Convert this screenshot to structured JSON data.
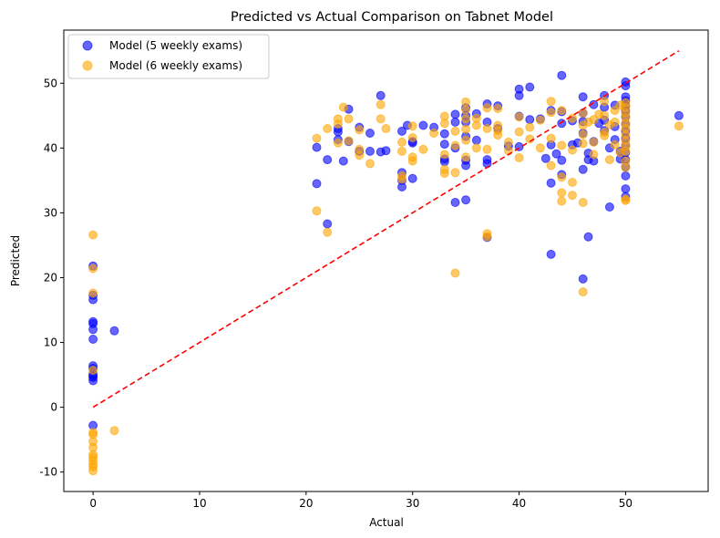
{
  "chart_data": {
    "type": "scatter",
    "title": "Predicted vs Actual Comparison on Tabnet Model",
    "xlabel": "Actual",
    "ylabel": "Predicted",
    "xlim": [
      -2.75,
      57.75
    ],
    "ylim": [
      -13.0,
      58.2
    ],
    "xticks": [
      0,
      10,
      20,
      30,
      40,
      50
    ],
    "yticks": [
      -10,
      0,
      10,
      20,
      30,
      40,
      50
    ],
    "grid": false,
    "legend_position": "top-left",
    "reference_line": {
      "x": [
        0,
        55
      ],
      "y": [
        0,
        55
      ],
      "style": "dashed",
      "color": "#ff0000"
    },
    "series": [
      {
        "name": "Model (5 weekly exams)",
        "color": "#0000ff",
        "points": [
          [
            0,
            21.8
          ],
          [
            0,
            17.3
          ],
          [
            0,
            16.6
          ],
          [
            0,
            13.2
          ],
          [
            0,
            12.9
          ],
          [
            0,
            12.0
          ],
          [
            0,
            10.5
          ],
          [
            0,
            6.4
          ],
          [
            0,
            6.0
          ],
          [
            0,
            5.1
          ],
          [
            0,
            4.8
          ],
          [
            0,
            4.6
          ],
          [
            0,
            4.1
          ],
          [
            0,
            -2.8
          ],
          [
            2,
            11.8
          ],
          [
            21,
            40.1
          ],
          [
            21,
            34.5
          ],
          [
            22,
            38.2
          ],
          [
            22,
            28.3
          ],
          [
            23,
            42.5
          ],
          [
            23,
            43.0
          ],
          [
            23,
            41.3
          ],
          [
            23.5,
            38.0
          ],
          [
            24,
            46.0
          ],
          [
            24,
            41.0
          ],
          [
            25,
            43.2
          ],
          [
            25,
            39.5
          ],
          [
            26,
            42.3
          ],
          [
            26,
            39.5
          ],
          [
            27,
            48.1
          ],
          [
            27,
            39.4
          ],
          [
            27.5,
            39.6
          ],
          [
            29,
            42.6
          ],
          [
            29,
            36.2
          ],
          [
            29,
            35.0
          ],
          [
            29,
            34.0
          ],
          [
            29.5,
            43.5
          ],
          [
            30,
            41.0
          ],
          [
            30,
            40.8
          ],
          [
            30,
            35.3
          ],
          [
            31,
            43.5
          ],
          [
            32,
            43.2
          ],
          [
            33,
            42.2
          ],
          [
            33,
            40.6
          ],
          [
            33,
            38.3
          ],
          [
            33,
            37.9
          ],
          [
            34,
            45.2
          ],
          [
            34,
            44.0
          ],
          [
            34,
            40.0
          ],
          [
            34,
            31.6
          ],
          [
            35,
            46.2
          ],
          [
            35,
            45.0
          ],
          [
            35,
            44.0
          ],
          [
            35,
            41.8
          ],
          [
            35,
            38.1
          ],
          [
            35,
            37.3
          ],
          [
            35,
            32.0
          ],
          [
            36,
            45.3
          ],
          [
            36,
            41.2
          ],
          [
            37,
            46.8
          ],
          [
            37,
            44.0
          ],
          [
            37,
            38.2
          ],
          [
            37,
            37.6
          ],
          [
            37,
            26.2
          ],
          [
            38,
            46.5
          ],
          [
            38,
            43.0
          ],
          [
            39,
            40.3
          ],
          [
            40,
            49.1
          ],
          [
            40,
            48.1
          ],
          [
            40,
            44.9
          ],
          [
            40,
            40.2
          ],
          [
            41,
            49.4
          ],
          [
            41,
            44.4
          ],
          [
            42,
            44.5
          ],
          [
            42.5,
            38.4
          ],
          [
            43,
            45.8
          ],
          [
            43,
            40.5
          ],
          [
            43,
            34.6
          ],
          [
            43,
            23.6
          ],
          [
            43.5,
            39.1
          ],
          [
            44,
            51.2
          ],
          [
            44,
            45.6
          ],
          [
            44,
            43.8
          ],
          [
            44,
            38.1
          ],
          [
            44,
            35.9
          ],
          [
            45,
            44.2
          ],
          [
            45,
            40.5
          ],
          [
            45.5,
            40.8
          ],
          [
            46,
            47.9
          ],
          [
            46,
            45.4
          ],
          [
            46,
            44.1
          ],
          [
            46,
            42.3
          ],
          [
            46,
            36.7
          ],
          [
            46,
            19.8
          ],
          [
            46.5,
            39.2
          ],
          [
            46.5,
            38.2
          ],
          [
            46.5,
            26.3
          ],
          [
            47,
            46.7
          ],
          [
            47,
            41.0
          ],
          [
            47,
            38.0
          ],
          [
            47.5,
            43.8
          ],
          [
            48,
            48.1
          ],
          [
            48,
            46.3
          ],
          [
            48,
            44.3
          ],
          [
            48,
            42.7
          ],
          [
            48.5,
            40.0
          ],
          [
            48.5,
            30.9
          ],
          [
            49,
            46.6
          ],
          [
            49,
            43.3
          ],
          [
            49,
            41.3
          ],
          [
            49.5,
            39.5
          ],
          [
            49.5,
            38.3
          ],
          [
            50,
            50.2
          ],
          [
            50,
            49.6
          ],
          [
            50,
            47.9
          ],
          [
            50,
            47.3
          ],
          [
            50,
            46.5
          ],
          [
            50,
            45.7
          ],
          [
            50,
            44.8
          ],
          [
            50,
            43.7
          ],
          [
            50,
            42.6
          ],
          [
            50,
            41.5
          ],
          [
            50,
            40.4
          ],
          [
            50,
            39.3
          ],
          [
            50,
            38.2
          ],
          [
            50,
            37.1
          ],
          [
            50,
            35.7
          ],
          [
            50,
            33.7
          ],
          [
            50,
            32.5
          ],
          [
            55,
            45.0
          ]
        ]
      },
      {
        "name": "Model (6 weekly exams)",
        "color": "#ffa500",
        "points": [
          [
            0,
            26.6
          ],
          [
            0,
            21.4
          ],
          [
            0,
            17.6
          ],
          [
            0,
            5.7
          ],
          [
            0,
            -3.9
          ],
          [
            0,
            -4.2
          ],
          [
            0,
            -5.3
          ],
          [
            0,
            -6.2
          ],
          [
            0,
            -7.3
          ],
          [
            0,
            -7.7
          ],
          [
            0,
            -8.2
          ],
          [
            0,
            -8.8
          ],
          [
            0,
            -9.2
          ],
          [
            0,
            -9.8
          ],
          [
            2,
            -3.6
          ],
          [
            21,
            41.5
          ],
          [
            21,
            30.3
          ],
          [
            22,
            43.0
          ],
          [
            22,
            27.0
          ],
          [
            23,
            44.5
          ],
          [
            23,
            43.7
          ],
          [
            23,
            40.8
          ],
          [
            23.5,
            46.3
          ],
          [
            24,
            44.5
          ],
          [
            24,
            41.1
          ],
          [
            25,
            42.8
          ],
          [
            25,
            39.8
          ],
          [
            25,
            38.9
          ],
          [
            26,
            37.6
          ],
          [
            27,
            46.7
          ],
          [
            27,
            44.5
          ],
          [
            27.5,
            43.0
          ],
          [
            29,
            40.9
          ],
          [
            29,
            39.5
          ],
          [
            29,
            35.7
          ],
          [
            29,
            35.2
          ],
          [
            30,
            43.4
          ],
          [
            30,
            41.6
          ],
          [
            30,
            38.6
          ],
          [
            30,
            38.0
          ],
          [
            31,
            39.8
          ],
          [
            32,
            42.3
          ],
          [
            33,
            44.9
          ],
          [
            33,
            43.8
          ],
          [
            33,
            39.0
          ],
          [
            33,
            36.7
          ],
          [
            33,
            36.1
          ],
          [
            34,
            42.6
          ],
          [
            34,
            40.4
          ],
          [
            34,
            36.2
          ],
          [
            34,
            20.7
          ],
          [
            35,
            47.1
          ],
          [
            35,
            45.9
          ],
          [
            35,
            44.5
          ],
          [
            35,
            42.9
          ],
          [
            35,
            41.2
          ],
          [
            35,
            38.6
          ],
          [
            36,
            44.6
          ],
          [
            36,
            43.5
          ],
          [
            36,
            40.0
          ],
          [
            37,
            46.2
          ],
          [
            37,
            43.0
          ],
          [
            37,
            39.8
          ],
          [
            37,
            26.8
          ],
          [
            37,
            26.3
          ],
          [
            38,
            46.1
          ],
          [
            38,
            43.5
          ],
          [
            38,
            42.7
          ],
          [
            38,
            42.0
          ],
          [
            39,
            39.6
          ],
          [
            39,
            40.9
          ],
          [
            40,
            44.8
          ],
          [
            40,
            42.5
          ],
          [
            40,
            38.5
          ],
          [
            41,
            43.2
          ],
          [
            41,
            41.4
          ],
          [
            42,
            44.3
          ],
          [
            42,
            40.0
          ],
          [
            43,
            47.2
          ],
          [
            43,
            45.5
          ],
          [
            43,
            41.5
          ],
          [
            43,
            37.3
          ],
          [
            44,
            45.8
          ],
          [
            44,
            40.4
          ],
          [
            44,
            35.5
          ],
          [
            44,
            33.1
          ],
          [
            44,
            31.8
          ],
          [
            45,
            44.6
          ],
          [
            45,
            39.7
          ],
          [
            45,
            34.7
          ],
          [
            45,
            32.7
          ],
          [
            46,
            45.4
          ],
          [
            46,
            43.5
          ],
          [
            46,
            42.1
          ],
          [
            46,
            40.7
          ],
          [
            46,
            31.6
          ],
          [
            46,
            17.8
          ],
          [
            46.5,
            44.0
          ],
          [
            47,
            44.4
          ],
          [
            47,
            40.9
          ],
          [
            47,
            39.0
          ],
          [
            47.5,
            45.2
          ],
          [
            48,
            47.2
          ],
          [
            48,
            45.0
          ],
          [
            48,
            42.4
          ],
          [
            48,
            41.9
          ],
          [
            48.5,
            43.6
          ],
          [
            48.5,
            38.2
          ],
          [
            49,
            45.8
          ],
          [
            49,
            44.0
          ],
          [
            49,
            40.5
          ],
          [
            49.5,
            46.6
          ],
          [
            49.5,
            39.3
          ],
          [
            50,
            47.0
          ],
          [
            50,
            46.3
          ],
          [
            50,
            45.5
          ],
          [
            50,
            44.7
          ],
          [
            50,
            43.8
          ],
          [
            50,
            43.0
          ],
          [
            50,
            42.1
          ],
          [
            50,
            41.2
          ],
          [
            50,
            40.3
          ],
          [
            50,
            39.5
          ],
          [
            50,
            38.0
          ],
          [
            50,
            37.0
          ],
          [
            50,
            32.1
          ],
          [
            50,
            31.9
          ],
          [
            55,
            43.4
          ]
        ]
      }
    ]
  }
}
